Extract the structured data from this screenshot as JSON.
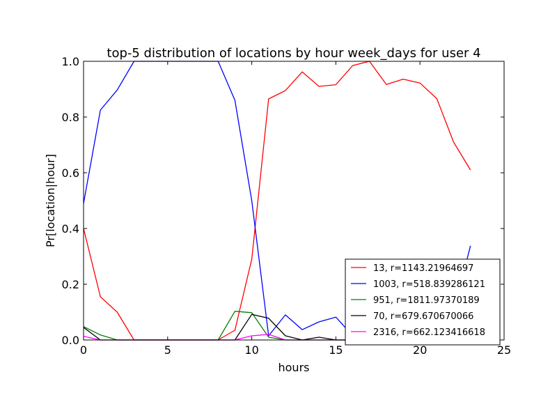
{
  "chart_data": {
    "type": "line",
    "title": "top-5 distribution of locations by hour week_days for user 4",
    "xlabel": "hours",
    "ylabel": "Pr[location|hour]",
    "xlim": [
      0,
      25
    ],
    "ylim": [
      0,
      1.0
    ],
    "xticks": [
      0,
      5,
      10,
      15,
      20,
      25
    ],
    "yticks": [
      0.0,
      0.2,
      0.4,
      0.6,
      0.8,
      1.0
    ],
    "xtick_labels": [
      "0",
      "5",
      "10",
      "15",
      "20",
      "25"
    ],
    "ytick_labels": [
      "0.0",
      "0.2",
      "0.4",
      "0.6",
      "0.8",
      "1.0"
    ],
    "grid": false,
    "legend_position": "lower-right",
    "series": [
      {
        "name": "13, r=1143.21964697",
        "color": "#ff0000",
        "x": [
          0,
          1,
          2,
          3,
          4,
          5,
          7,
          8,
          9,
          10,
          11,
          12,
          13,
          14,
          15,
          16,
          17,
          18,
          19,
          20,
          21,
          22,
          23
        ],
        "y": [
          0.4,
          0.155,
          0.1,
          0.0,
          0.0,
          0.0,
          0.0,
          0.0,
          0.035,
          0.29,
          0.865,
          0.895,
          0.962,
          0.91,
          0.916,
          0.985,
          1.0,
          0.917,
          0.936,
          0.922,
          0.866,
          0.71,
          0.61
        ]
      },
      {
        "name": "1003, r=518.839286121",
        "color": "#0000ff",
        "x": [
          0,
          1,
          2,
          3,
          4,
          5,
          7,
          8,
          9,
          10,
          11,
          12,
          13,
          14,
          15,
          16,
          17,
          18,
          19,
          20,
          21,
          22,
          23
        ],
        "y": [
          0.49,
          0.825,
          0.897,
          1.0,
          1.0,
          1.0,
          1.0,
          1.0,
          0.86,
          0.5,
          0.015,
          0.09,
          0.037,
          0.065,
          0.082,
          0.015,
          0.0,
          0.0,
          0.0,
          0.0,
          0.0,
          0.1,
          0.338
        ]
      },
      {
        "name": "951, r=1811.97370189",
        "color": "#008000",
        "x": [
          0,
          1,
          2,
          3,
          4,
          5,
          7,
          8,
          9,
          10,
          11,
          12,
          13,
          14,
          15,
          16,
          17,
          18,
          19,
          20,
          21,
          22,
          23
        ],
        "y": [
          0.048,
          0.018,
          0.0,
          0.0,
          0.0,
          0.0,
          0.0,
          0.0,
          0.103,
          0.098,
          0.01,
          0.0,
          0.0,
          0.0,
          0.0,
          0.0,
          0.0,
          0.0,
          0.0,
          0.0,
          0.018,
          0.018,
          0.018
        ]
      },
      {
        "name": "70, r=679.670670066",
        "color": "#000000",
        "x": [
          0,
          1,
          2,
          3,
          4,
          5,
          7,
          8,
          9,
          10,
          11,
          12,
          13,
          14,
          15,
          16,
          17,
          18,
          19,
          20,
          21,
          22,
          23
        ],
        "y": [
          0.045,
          0.0,
          0.0,
          0.0,
          0.0,
          0.0,
          0.0,
          0.0,
          0.0,
          0.092,
          0.078,
          0.015,
          0.0,
          0.01,
          0.0,
          0.0,
          0.0,
          0.01,
          0.0,
          0.0,
          0.0,
          0.015,
          0.015
        ]
      },
      {
        "name": "2316, r=662.123416618",
        "color": "#ff00ff",
        "x": [
          0,
          1,
          2,
          3,
          4,
          5,
          7,
          8,
          9,
          10,
          11,
          12,
          13,
          14,
          15,
          16,
          17,
          18,
          19,
          20,
          21,
          22,
          23
        ],
        "y": [
          0.013,
          0.0,
          0.0,
          0.0,
          0.0,
          0.0,
          0.0,
          0.0,
          0.0,
          0.015,
          0.02,
          0.0,
          0.0,
          0.0,
          0.0,
          0.0,
          0.0,
          0.0,
          0.012,
          0.0,
          0.0,
          0.012,
          0.012
        ]
      }
    ]
  }
}
